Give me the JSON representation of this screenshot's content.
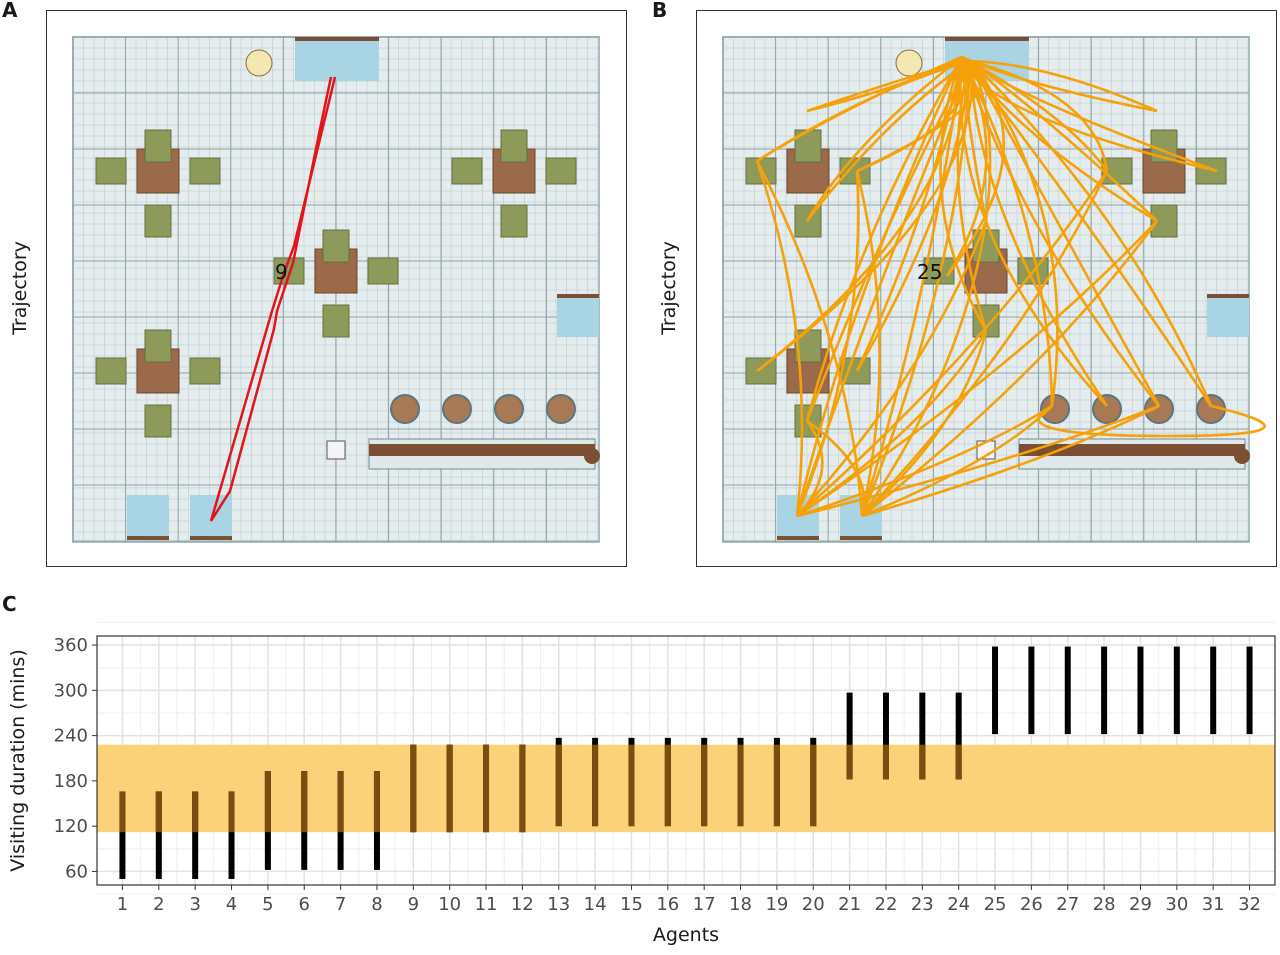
{
  "panels": {
    "a": {
      "letter": "A",
      "ylabel": "Trajectory",
      "agent_label": "9",
      "path_color": "#e3141b"
    },
    "b": {
      "letter": "B",
      "ylabel": "Trajectory",
      "agent_label": "25",
      "path_color": "#f5a10a"
    },
    "c": {
      "letter": "C"
    }
  },
  "colors": {
    "floor": "#e4eced",
    "grid": "#b8c6c8",
    "table": "#9a6a4a",
    "chair": "#8d9a5a",
    "door": "#a9d4e3",
    "counter": "#7a4f33",
    "band": "#fbd27a",
    "bar": "#000000",
    "bar_in_band": "#7a4e0e"
  },
  "chart_data": {
    "type": "bar",
    "title": "",
    "xlabel": "Agents",
    "ylabel": "Visiting duration (mins)",
    "categories": [
      "1",
      "2",
      "3",
      "4",
      "5",
      "6",
      "7",
      "8",
      "9",
      "10",
      "11",
      "12",
      "13",
      "14",
      "15",
      "16",
      "17",
      "18",
      "19",
      "20",
      "21",
      "22",
      "23",
      "24",
      "25",
      "26",
      "27",
      "28",
      "29",
      "30",
      "31",
      "32"
    ],
    "y_start": [
      50,
      50,
      50,
      50,
      62,
      62,
      62,
      62,
      112,
      112,
      112,
      112,
      120,
      120,
      120,
      120,
      120,
      120,
      120,
      120,
      182,
      182,
      182,
      182,
      242,
      242,
      242,
      242,
      242,
      242,
      242,
      242
    ],
    "y_end": [
      166,
      166,
      166,
      166,
      193,
      193,
      193,
      193,
      228,
      228,
      228,
      228,
      237,
      237,
      237,
      237,
      237,
      237,
      237,
      237,
      297,
      297,
      297,
      297,
      358,
      358,
      358,
      358,
      358,
      358,
      358,
      358
    ],
    "highlight_band": [
      112,
      228
    ],
    "yticks": [
      60,
      120,
      180,
      240,
      300,
      360
    ],
    "ylim": [
      42,
      372
    ],
    "grid": true
  }
}
